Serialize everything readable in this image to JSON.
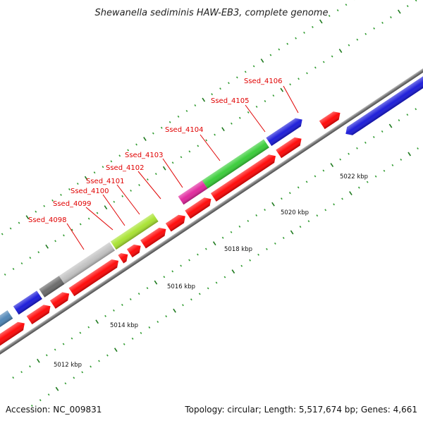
{
  "title": "Shewanella sediminis HAW-EB3, complete genome",
  "accession": "Accession: NC_009831",
  "topology": "Topology: circular; Length: 5,517,674 bp; Genes: 4,661",
  "colors": {
    "backbone": "#8a8a8a",
    "cds": "#ff0000",
    "label": "#e00000",
    "tick_major": "#1e7a1e",
    "tick_minor": "#2e9a2e",
    "blue": "#1414d8",
    "steelblue": "#4a82b4",
    "darkgray": "#666666",
    "lightgray": "#c0c0c0",
    "yellowgreen": "#a6e22c",
    "green": "#33cc33",
    "magenta": "#e0209a"
  },
  "scale_labels": [
    "5012 kbp",
    "5014 kbp",
    "5016 kbp",
    "5018 kbp",
    "5020 kbp",
    "5022 kbp"
  ],
  "gene_labels": [
    {
      "text": "Ssed_4098"
    },
    {
      "text": "Ssed_4099"
    },
    {
      "text": "Ssed_4100"
    },
    {
      "text": "Ssed_4101"
    },
    {
      "text": "Ssed_4102"
    },
    {
      "text": "Ssed_4103"
    },
    {
      "text": "Ssed_4104"
    },
    {
      "text": "Ssed_4105"
    },
    {
      "text": "Ssed_4106"
    }
  ]
}
